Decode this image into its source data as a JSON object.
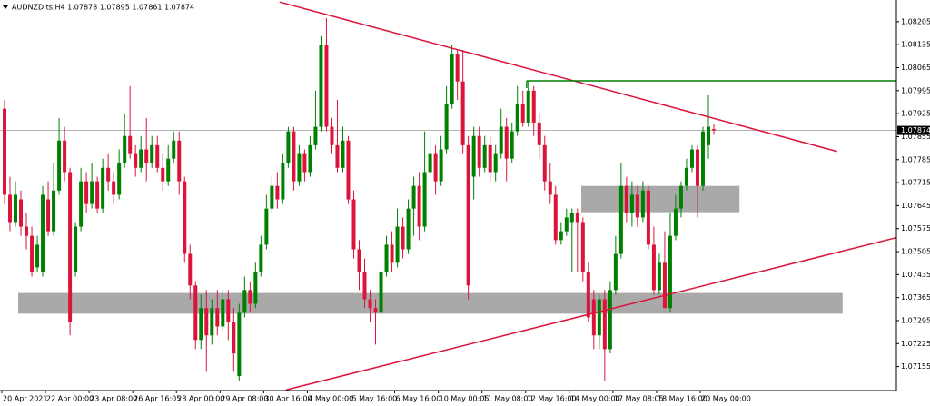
{
  "chart_data": {
    "type": "candlestick",
    "title": "AUDNZD.ts,H4  1.07878 1.07895 1.07861 1.07874",
    "categories": [
      "20 Apr 2021",
      null,
      null,
      null,
      null,
      null,
      null,
      null,
      "22 Apr 00:00",
      null,
      null,
      null,
      null,
      null,
      null,
      null,
      "23 Apr 08:00",
      null,
      null,
      null,
      null,
      null,
      null,
      null,
      "26 Apr 16:05",
      null,
      null,
      null,
      null,
      null,
      null,
      null,
      "28 Apr 00:00",
      null,
      null,
      null,
      null,
      null,
      null,
      null,
      "29 Apr 08:00",
      null,
      null,
      null,
      null,
      null,
      null,
      null,
      "30 Apr 16:00",
      null,
      null,
      null,
      null,
      null,
      null,
      null,
      "4 May 00:00",
      null,
      null,
      null,
      null,
      null,
      null,
      null,
      "5 May 16:00",
      null,
      null,
      null,
      null,
      null,
      null,
      null,
      "6 May 16:00",
      null,
      null,
      null,
      null,
      null,
      null,
      null,
      "10 May 00:05",
      null,
      null,
      null,
      null,
      null,
      null,
      null,
      "11 May 08:00",
      null,
      null,
      null,
      null,
      null,
      null,
      null,
      "12 May 16:00",
      null,
      null,
      null,
      null,
      null,
      null,
      null,
      "14 May 00:00",
      null,
      null,
      null,
      null,
      null,
      null,
      null,
      "17 May 08:05",
      null,
      null,
      null,
      null,
      null,
      null,
      null,
      "18 May 16:00",
      null,
      null,
      null,
      null,
      null,
      null,
      null,
      "20 May 00:00",
      null,
      null
    ],
    "series": [
      {
        "up_color": "#008000",
        "down_color": "#dc143c",
        "open": [
          1.0794,
          1.07678,
          1.07595,
          1.07664,
          1.07581,
          1.07553,
          1.07457,
          1.07443,
          1.07664,
          1.07567,
          1.07691,
          1.07843,
          1.07747,
          1.07443,
          1.07581,
          1.07719,
          1.0765,
          1.07719,
          1.07636,
          1.0776,
          1.07719,
          1.07678,
          1.07774,
          1.07857,
          1.07802,
          1.0776,
          1.07816,
          1.07774,
          1.07829,
          1.0776,
          1.07719,
          1.07788,
          1.07843,
          1.07719,
          1.07498,
          1.07402,
          1.07236,
          1.07333,
          1.0725,
          1.07333,
          1.07277,
          1.0736,
          1.07291,
          1.07126,
          1.07319,
          1.07388,
          1.07346,
          1.07443,
          1.07526,
          1.07636,
          1.07705,
          1.07664,
          1.07774,
          1.07871,
          1.07719,
          1.07802,
          1.07747,
          1.07829,
          1.07885,
          1.08133,
          1.07885,
          1.07829,
          1.0776,
          1.07843,
          1.07664,
          1.07512,
          1.07443,
          1.0736,
          1.07333,
          1.07319,
          1.07443,
          1.07526,
          1.07471,
          1.07581,
          1.07512,
          1.07636,
          1.07705,
          1.07581,
          1.07747,
          1.07802,
          1.07719,
          1.07816,
          1.07954,
          1.08105,
          1.08023,
          1.07829,
          1.07733,
          1.07857,
          1.0776,
          1.07829,
          1.07747,
          1.07802,
          1.07885,
          1.07788,
          1.07871,
          1.07954,
          1.07898,
          1.07995,
          1.07898,
          1.07829,
          1.07719,
          1.07678,
          1.0754,
          1.07567,
          1.07595,
          1.07622,
          1.07595,
          1.07443,
          1.0736,
          1.0725,
          1.0736,
          1.07208,
          1.07388,
          1.07498,
          1.07705,
          1.07622,
          1.07678,
          1.07609,
          1.07691,
          1.07526,
          1.07388,
          1.07471,
          1.07333,
          1.07553,
          1.07636,
          1.07705,
          1.0776,
          1.07816,
          1.07705,
          1.07829,
          1.07878
        ],
        "high": [
          1.07967,
          1.07733,
          1.07719,
          1.07691,
          1.07622,
          1.07581,
          1.07553,
          1.07705,
          1.07719,
          1.07774,
          1.07912,
          1.07885,
          1.0776,
          1.07595,
          1.0776,
          1.07747,
          1.07774,
          1.07733,
          1.07788,
          1.07802,
          1.07747,
          1.07816,
          1.07926,
          1.08009,
          1.07829,
          1.07857,
          1.07912,
          1.07857,
          1.07857,
          1.07802,
          1.07829,
          1.07871,
          1.07871,
          1.07733,
          1.07526,
          1.07415,
          1.07374,
          1.07388,
          1.0736,
          1.07388,
          1.07388,
          1.07388,
          1.07333,
          1.07346,
          1.07429,
          1.07415,
          1.07471,
          1.07553,
          1.07678,
          1.07733,
          1.07747,
          1.07802,
          1.07885,
          1.07885,
          1.07829,
          1.07816,
          1.07857,
          1.07995,
          1.08161,
          1.08216,
          1.07912,
          1.07967,
          1.07885,
          1.07857,
          1.07691,
          1.0754,
          1.07484,
          1.07388,
          1.0736,
          1.07471,
          1.07553,
          1.07567,
          1.07636,
          1.07609,
          1.07664,
          1.07733,
          1.07747,
          1.07871,
          1.07857,
          1.07829,
          1.07857,
          1.08009,
          1.08133,
          1.08119,
          1.08119,
          1.07857,
          1.07885,
          1.07885,
          1.07857,
          1.07857,
          1.07829,
          1.0794,
          1.07912,
          1.07898,
          1.08009,
          1.07995,
          1.08023,
          1.08009,
          1.07926,
          1.07857,
          1.07774,
          1.07705,
          1.07595,
          1.07636,
          1.07636,
          1.07636,
          1.07609,
          1.07471,
          1.07388,
          1.07374,
          1.07388,
          1.07415,
          1.07553,
          1.07774,
          1.07733,
          1.07719,
          1.07705,
          1.07719,
          1.07705,
          1.07581,
          1.07498,
          1.07567,
          1.07622,
          1.07678,
          1.07719,
          1.07788,
          1.07829,
          1.07829,
          1.07885,
          1.07981,
          1.07895
        ],
        "low": [
          1.0765,
          1.07567,
          1.07581,
          1.07553,
          1.07512,
          1.07429,
          1.07443,
          1.07429,
          1.07553,
          1.07553,
          1.07678,
          1.07719,
          1.0725,
          1.07429,
          1.07567,
          1.07622,
          1.07636,
          1.07622,
          1.07622,
          1.07691,
          1.0765,
          1.07664,
          1.0776,
          1.07788,
          1.07733,
          1.07747,
          1.07719,
          1.0776,
          1.07747,
          1.07691,
          1.07705,
          1.07774,
          1.07678,
          1.07471,
          1.0736,
          1.07208,
          1.07208,
          1.07139,
          1.07222,
          1.0725,
          1.07264,
          1.07236,
          1.07139,
          1.07112,
          1.07305,
          1.07319,
          1.07333,
          1.07429,
          1.07512,
          1.07622,
          1.07636,
          1.0765,
          1.0776,
          1.07691,
          1.07705,
          1.07719,
          1.07733,
          1.07816,
          1.07871,
          1.07871,
          1.07802,
          1.07747,
          1.07747,
          1.0765,
          1.07484,
          1.07388,
          1.07333,
          1.07291,
          1.07222,
          1.07305,
          1.07429,
          1.07443,
          1.07457,
          1.07484,
          1.07498,
          1.07553,
          1.0754,
          1.07567,
          1.07733,
          1.07678,
          1.07705,
          1.07802,
          1.0794,
          1.07967,
          1.07802,
          1.0736,
          1.07664,
          1.07733,
          1.07747,
          1.07719,
          1.07719,
          1.07788,
          1.07719,
          1.07774,
          1.07857,
          1.07885,
          1.07885,
          1.07857,
          1.07788,
          1.07691,
          1.0765,
          1.07526,
          1.07526,
          1.07553,
          1.07443,
          1.07443,
          1.07415,
          1.07291,
          1.07208,
          1.07208,
          1.07112,
          1.07195,
          1.07374,
          1.07484,
          1.07595,
          1.07581,
          1.07581,
          1.07595,
          1.07512,
          1.07374,
          1.07374,
          1.07333,
          1.07319,
          1.0754,
          1.07609,
          1.07691,
          1.07747,
          1.07609,
          1.07691,
          1.07788,
          1.07861
        ],
        "close": [
          1.07678,
          1.07595,
          1.07678,
          1.07581,
          1.07553,
          1.07443,
          1.07526,
          1.07678,
          1.07567,
          1.07691,
          1.07843,
          1.07747,
          1.07291,
          1.07581,
          1.07719,
          1.0765,
          1.07719,
          1.07636,
          1.0776,
          1.07719,
          1.07678,
          1.07774,
          1.07857,
          1.07802,
          1.0776,
          1.07816,
          1.07774,
          1.07829,
          1.0776,
          1.07719,
          1.07788,
          1.07843,
          1.07719,
          1.07498,
          1.07402,
          1.07236,
          1.07333,
          1.0725,
          1.07333,
          1.07277,
          1.0736,
          1.07291,
          1.07195,
          1.07319,
          1.07388,
          1.07346,
          1.07443,
          1.07526,
          1.07636,
          1.07705,
          1.07664,
          1.07774,
          1.07871,
          1.07719,
          1.07802,
          1.07747,
          1.07829,
          1.07885,
          1.08133,
          1.07885,
          1.07829,
          1.0776,
          1.07843,
          1.07664,
          1.07512,
          1.07443,
          1.0736,
          1.07333,
          1.07319,
          1.07443,
          1.07526,
          1.07471,
          1.07581,
          1.07512,
          1.07636,
          1.07705,
          1.07581,
          1.07747,
          1.07802,
          1.07719,
          1.07816,
          1.07954,
          1.08105,
          1.08023,
          1.07829,
          1.07402,
          1.07857,
          1.0776,
          1.07829,
          1.07747,
          1.07802,
          1.07885,
          1.07788,
          1.07871,
          1.07954,
          1.07898,
          1.07995,
          1.07898,
          1.07829,
          1.07719,
          1.07678,
          1.0754,
          1.07567,
          1.07609,
          1.07622,
          1.07595,
          1.07443,
          1.07305,
          1.0725,
          1.0736,
          1.07208,
          1.07388,
          1.07498,
          1.07705,
          1.07622,
          1.07678,
          1.07609,
          1.07691,
          1.07526,
          1.07388,
          1.07471,
          1.07333,
          1.07553,
          1.07636,
          1.07705,
          1.0776,
          1.07816,
          1.07705,
          1.07871,
          1.07885,
          1.07874
        ]
      }
    ],
    "ylim": [
      1.07082,
      1.08271
    ],
    "yticks": [
      1.08205,
      1.08135,
      1.08065,
      1.07995,
      1.07925,
      1.07855,
      1.07785,
      1.07715,
      1.07645,
      1.07575,
      1.07505,
      1.07435,
      1.07365,
      1.07295,
      1.07225,
      1.07155
    ],
    "last": 1.07874,
    "trendlines": [
      {
        "color": "#dc143c",
        "from": [
          50.4,
          1.08265
        ],
        "to": [
          152.6,
          1.0781
        ]
      },
      {
        "color": "#dc143c",
        "from": [
          51.6,
          1.07084
        ],
        "to": [
          169.6,
          1.07573
        ]
      }
    ],
    "levels": [
      {
        "color": "#008000",
        "price": 1.08025,
        "from": 95.7
      }
    ],
    "zones": [
      {
        "color": "#a9a9a9",
        "top": 1.07705,
        "bottom": 1.07625,
        "from": 105.7,
        "to": 134.7
      },
      {
        "color": "#a9a9a9",
        "top": 1.07379,
        "bottom": 1.07316,
        "from": 2.5,
        "to": 153.6
      }
    ]
  }
}
